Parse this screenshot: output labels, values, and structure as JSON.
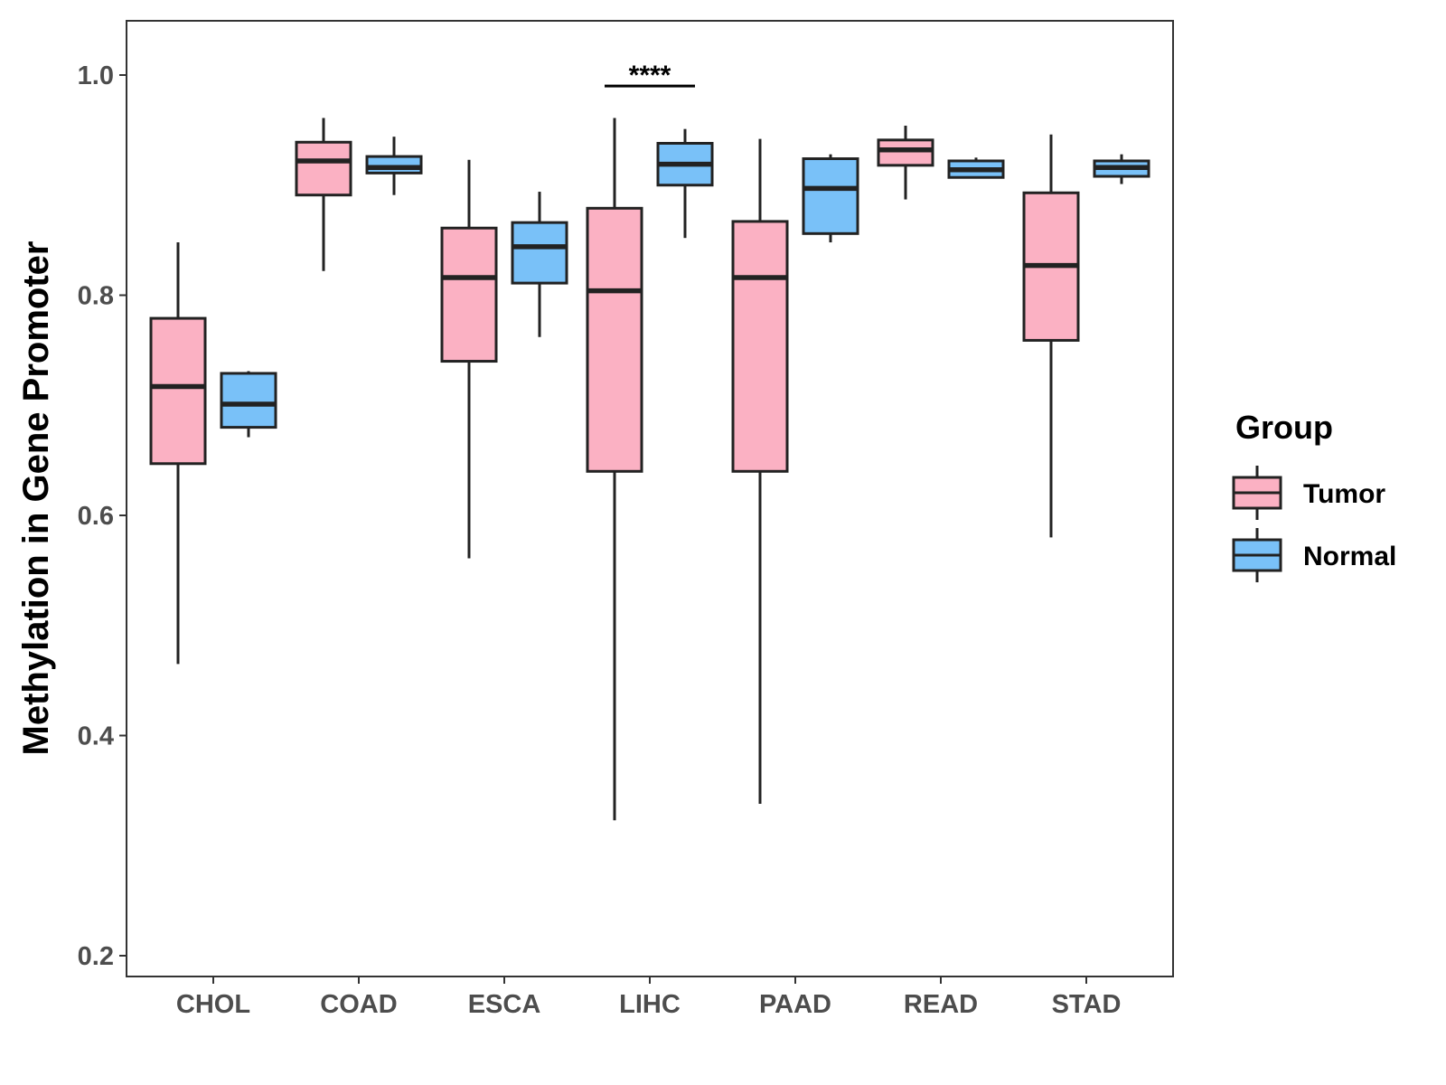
{
  "chart_data": {
    "type": "boxplot",
    "title": "",
    "xlabel": "",
    "ylabel": "Methylation in Gene Promoter",
    "ylim": [
      0.17,
      1.05
    ],
    "yticks": [
      0.2,
      0.4,
      0.6,
      0.8,
      1.0
    ],
    "ytick_labels": [
      "0.2",
      "0.4",
      "0.6",
      "0.8",
      "1.0"
    ],
    "categories": [
      "CHOL",
      "COAD",
      "ESCA",
      "LIHC",
      "PAAD",
      "READ",
      "STAD"
    ],
    "legend": {
      "title": "Group",
      "position": "right",
      "entries": [
        {
          "name": "Tumor",
          "color": "#FBB1C3"
        },
        {
          "name": "Normal",
          "color": "#79C1F8"
        }
      ]
    },
    "series": [
      {
        "name": "Tumor",
        "color": "#FBB1C3",
        "boxes": [
          {
            "category": "CHOL",
            "min": 0.465,
            "q1": 0.647,
            "median": 0.717,
            "q3": 0.779,
            "max": 0.848
          },
          {
            "category": "COAD",
            "min": 0.822,
            "q1": 0.891,
            "median": 0.922,
            "q3": 0.939,
            "max": 0.961
          },
          {
            "category": "ESCA",
            "min": 0.561,
            "q1": 0.74,
            "median": 0.816,
            "q3": 0.861,
            "max": 0.923
          },
          {
            "category": "LIHC",
            "min": 0.323,
            "q1": 0.64,
            "median": 0.804,
            "q3": 0.879,
            "max": 0.961
          },
          {
            "category": "PAAD",
            "min": 0.338,
            "q1": 0.64,
            "median": 0.816,
            "q3": 0.867,
            "max": 0.942
          },
          {
            "category": "READ",
            "min": 0.887,
            "q1": 0.918,
            "median": 0.932,
            "q3": 0.941,
            "max": 0.954
          },
          {
            "category": "STAD",
            "min": 0.58,
            "q1": 0.759,
            "median": 0.827,
            "q3": 0.893,
            "max": 0.946
          }
        ]
      },
      {
        "name": "Normal",
        "color": "#79C1F8",
        "boxes": [
          {
            "category": "CHOL",
            "min": 0.671,
            "q1": 0.68,
            "median": 0.701,
            "q3": 0.729,
            "max": 0.731
          },
          {
            "category": "COAD",
            "min": 0.891,
            "q1": 0.911,
            "median": 0.916,
            "q3": 0.926,
            "max": 0.944
          },
          {
            "category": "ESCA",
            "min": 0.762,
            "q1": 0.811,
            "median": 0.844,
            "q3": 0.866,
            "max": 0.894
          },
          {
            "category": "LIHC",
            "min": 0.852,
            "q1": 0.9,
            "median": 0.919,
            "q3": 0.938,
            "max": 0.951
          },
          {
            "category": "PAAD",
            "min": 0.848,
            "q1": 0.856,
            "median": 0.897,
            "q3": 0.924,
            "max": 0.928
          },
          {
            "category": "READ",
            "min": 0.907,
            "q1": 0.907,
            "median": 0.914,
            "q3": 0.922,
            "max": 0.925
          },
          {
            "category": "STAD",
            "min": 0.901,
            "q1": 0.908,
            "median": 0.916,
            "q3": 0.922,
            "max": 0.928
          }
        ]
      }
    ],
    "annotations": [
      {
        "category": "LIHC",
        "label": "****",
        "y": 0.99
      }
    ]
  }
}
